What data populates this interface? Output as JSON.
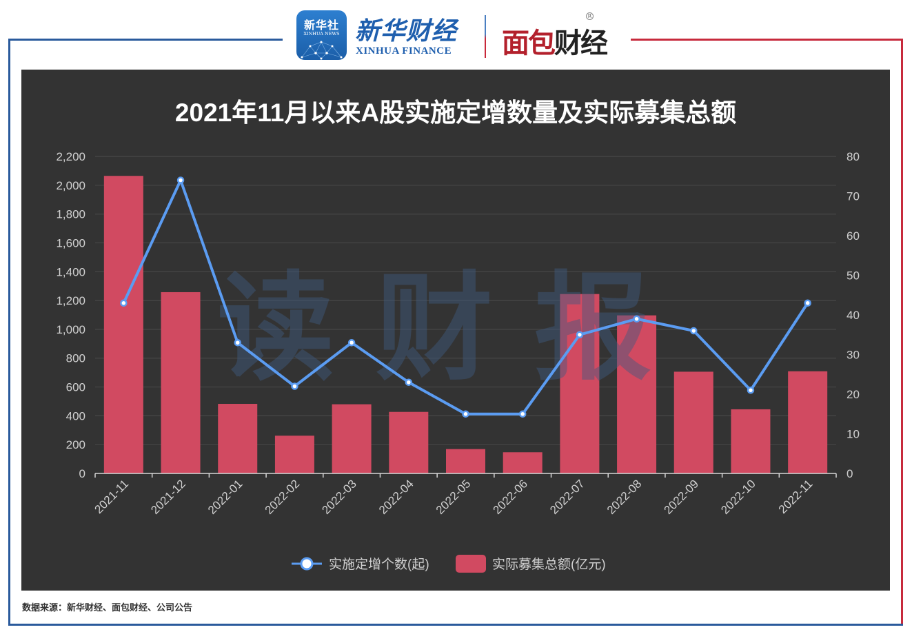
{
  "header": {
    "xinhua_icon": {
      "cn": "新华社",
      "en": "XINHUA NEWS"
    },
    "xinhua_finance": {
      "cn": "新华财经",
      "en": "XINHUA FINANCE"
    },
    "mianbao": {
      "part1": "面包",
      "part2": "财经",
      "reg": "R"
    }
  },
  "watermark": "读财报",
  "source": "数据来源：新华财经、面包财经、公司公告",
  "colors": {
    "panel_bg": "#333333",
    "bar": "#d14a61",
    "line": "#5b9cf2",
    "grid": "#474747",
    "axis_text": "#d0d0d0",
    "frame_blue": "#2a5a9c",
    "frame_red": "#c72a3c"
  },
  "chart_data": {
    "type": "bar+line",
    "title": "2021年11月以来A股实施定增数量及实际募集总额",
    "categories": [
      "2021-11",
      "2021-12",
      "2022-01",
      "2022-02",
      "2022-03",
      "2022-04",
      "2022-05",
      "2022-06",
      "2022-07",
      "2022-08",
      "2022-09",
      "2022-10",
      "2022-11"
    ],
    "series": [
      {
        "name": "实际募集总额(亿元)",
        "type": "bar",
        "axis": "left",
        "values": [
          2065,
          1258,
          483,
          262,
          480,
          427,
          169,
          147,
          1245,
          1097,
          706,
          445,
          709
        ]
      },
      {
        "name": "实施定增个数(起)",
        "type": "line",
        "axis": "right",
        "values": [
          43,
          74,
          33,
          22,
          33,
          23,
          15,
          15,
          35,
          39,
          36,
          21,
          43
        ]
      }
    ],
    "left_axis": {
      "min": 0,
      "max": 2200,
      "step": 200,
      "ticks": [
        "0",
        "200",
        "400",
        "600",
        "800",
        "1,000",
        "1,200",
        "1,400",
        "1,600",
        "1,800",
        "2,000",
        "2,200"
      ]
    },
    "right_axis": {
      "min": 0,
      "max": 80,
      "step": 10,
      "ticks": [
        "0",
        "10",
        "20",
        "30",
        "40",
        "50",
        "60",
        "70",
        "80"
      ]
    },
    "legend": [
      {
        "label": "实施定增个数(起)",
        "type": "line"
      },
      {
        "label": "实际募集总额(亿元)",
        "type": "bar"
      }
    ],
    "legend_position": "bottom",
    "grid": true,
    "xlabel": "",
    "ylabel": "",
    "y2label": ""
  }
}
